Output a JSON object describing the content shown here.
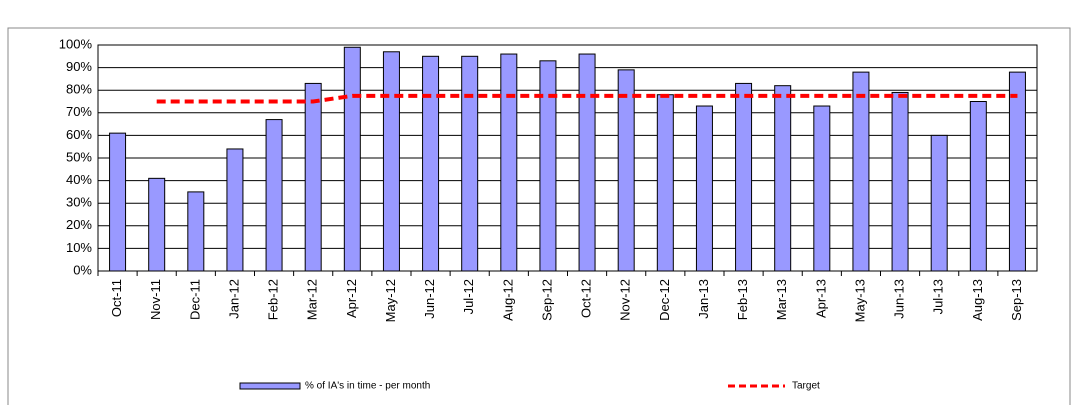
{
  "chart_data": {
    "type": "bar",
    "categories": [
      "Oct-11",
      "Nov-11",
      "Dec-11",
      "Jan-12",
      "Feb-12",
      "Mar-12",
      "Apr-12",
      "May-12",
      "Jun-12",
      "Jul-12",
      "Aug-12",
      "Sep-12",
      "Oct-12",
      "Nov-12",
      "Dec-12",
      "Jan-13",
      "Feb-13",
      "Mar-13",
      "Apr-13",
      "May-13",
      "Jun-13",
      "Jul-13",
      "Aug-13",
      "Sep-13"
    ],
    "series": [
      {
        "name": "% of IA's in time - per month",
        "type": "bar",
        "color": "#9999ff",
        "values": [
          61,
          41,
          35,
          54,
          67,
          83,
          99,
          97,
          95,
          95,
          96,
          93,
          96,
          89,
          78,
          73,
          83,
          82,
          73,
          88,
          79,
          60,
          75,
          88
        ]
      },
      {
        "name": "Target",
        "type": "line",
        "color": "#ff0000",
        "values": [
          null,
          75,
          75,
          75,
          75,
          75,
          77.5,
          77.5,
          77.5,
          77.5,
          77.5,
          77.5,
          77.5,
          77.5,
          77.5,
          77.5,
          77.5,
          77.5,
          77.5,
          77.5,
          77.5,
          77.5,
          77.5,
          77.5
        ]
      }
    ],
    "ylim": [
      0,
      100
    ],
    "yticks": [
      {
        "value": 0,
        "label": "0%"
      },
      {
        "value": 10,
        "label": "10%"
      },
      {
        "value": 20,
        "label": "20%"
      },
      {
        "value": 30,
        "label": "30%"
      },
      {
        "value": 40,
        "label": "40%"
      },
      {
        "value": 50,
        "label": "50%"
      },
      {
        "value": 60,
        "label": "60%"
      },
      {
        "value": 70,
        "label": "70%"
      },
      {
        "value": 80,
        "label": "80%"
      },
      {
        "value": 90,
        "label": "90%"
      },
      {
        "value": 100,
        "label": "100%"
      }
    ],
    "grid": true
  }
}
